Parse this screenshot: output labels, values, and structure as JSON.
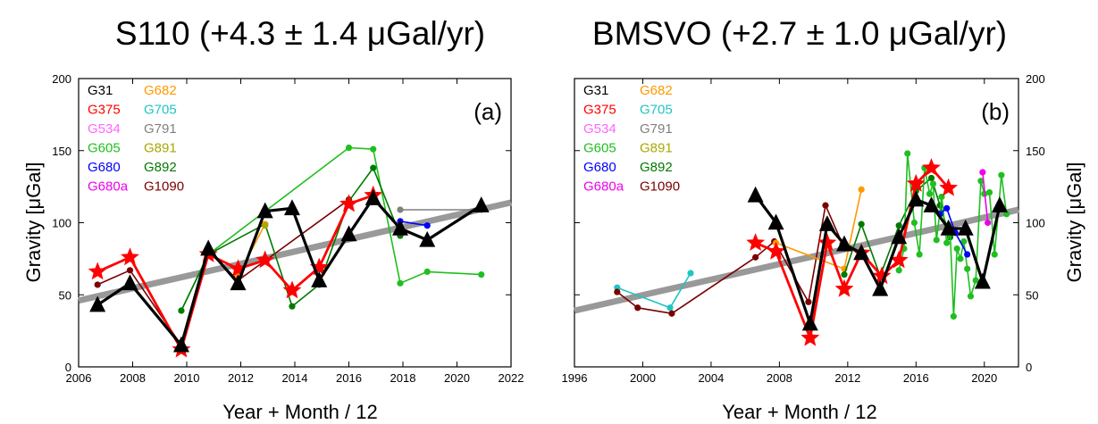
{
  "colors": {
    "G31": "#000000",
    "G375": "#ff0000",
    "G534": "#ff66ff",
    "G605": "#1fbf1f",
    "G680": "#0000ff",
    "G680a": "#ee00ee",
    "G682": "#ff9900",
    "G705": "#20c4c4",
    "G791": "#808080",
    "G891": "#a8a800",
    "G892": "#007a00",
    "G1090": "#7a0000",
    "trend": "#999999"
  },
  "chart_data": [
    {
      "type": "line",
      "panel_label": "(a)",
      "title": "S110 (+4.3 ± 1.4 μGal/yr)",
      "xlabel": "Year + Month / 12",
      "ylabel": "Gravity [μGal]",
      "xlim": [
        2006,
        2022
      ],
      "ylim": [
        0,
        200
      ],
      "xticks": [
        2006,
        2008,
        2010,
        2012,
        2014,
        2016,
        2018,
        2020,
        2022
      ],
      "yticks": [
        0,
        50,
        100,
        150,
        200
      ],
      "y_axis_side": "left",
      "legend": {
        "columns": [
          [
            "G31",
            "G375",
            "G534",
            "G605",
            "G680",
            "G680a"
          ],
          [
            "G682",
            "G705",
            "G791",
            "G891",
            "G892",
            "G1090"
          ]
        ]
      },
      "trend": {
        "x": [
          2006,
          2022
        ],
        "y": [
          46,
          114
        ]
      },
      "series": [
        {
          "name": "G1090",
          "marker": "dot",
          "x": [
            2006.7,
            2007.9,
            2009.8,
            2010.8,
            2011.9,
            2016.0
          ],
          "y": [
            57,
            67,
            15,
            80,
            60,
            116
          ]
        },
        {
          "name": "G605",
          "marker": "dot",
          "x": [
            2009.8,
            2010.8,
            2016.0,
            2016.9,
            2017.9,
            2018.9,
            2020.9
          ],
          "y": [
            39,
            78,
            152,
            151,
            58,
            66,
            64
          ]
        },
        {
          "name": "G892",
          "marker": "dot",
          "x": [
            2009.8,
            2010.8,
            2012.9,
            2013.9,
            2014.9,
            2016.0,
            2016.9,
            2017.9
          ],
          "y": [
            39,
            78,
            99,
            42,
            57,
            115,
            138,
            91
          ]
        },
        {
          "name": "G682",
          "marker": "dot",
          "x": [
            2011.9,
            2012.9
          ],
          "y": [
            63,
            99
          ]
        },
        {
          "name": "G891",
          "marker": "dot",
          "x": [
            2012.9
          ],
          "y": [
            98
          ]
        },
        {
          "name": "G791",
          "marker": "dot",
          "x": [
            2017.9,
            2020.9
          ],
          "y": [
            109,
            109
          ]
        },
        {
          "name": "G680",
          "marker": "dot",
          "x": [
            2017.9,
            2018.9
          ],
          "y": [
            101,
            98
          ]
        },
        {
          "name": "G375",
          "marker": "star",
          "x": [
            2006.7,
            2007.9,
            2009.8,
            2010.8,
            2011.9,
            2012.9,
            2013.9,
            2014.9,
            2016.0,
            2016.9
          ],
          "y": [
            66,
            76,
            12,
            78,
            68,
            74,
            53,
            69,
            113,
            119
          ]
        },
        {
          "name": "G31",
          "marker": "triangle",
          "x": [
            2006.7,
            2007.9,
            2009.8,
            2010.8,
            2011.9,
            2012.9,
            2013.9,
            2014.9,
            2016.0,
            2016.9,
            2017.9,
            2018.9,
            2020.9
          ],
          "y": [
            43,
            58,
            15,
            82,
            58,
            108,
            110,
            60,
            92,
            117,
            96,
            88,
            112
          ]
        }
      ]
    },
    {
      "type": "line",
      "panel_label": "(b)",
      "title": "BMSVO (+2.7 ± 1.0 μGal/yr)",
      "xlabel": "Year + Month / 12",
      "ylabel": "Gravity [μGal]",
      "xlim": [
        1996,
        2022
      ],
      "ylim": [
        0,
        200
      ],
      "xticks": [
        1996,
        2000,
        2004,
        2008,
        2012,
        2016,
        2020
      ],
      "yticks": [
        0,
        50,
        100,
        150,
        200
      ],
      "y_axis_side": "right",
      "legend": {
        "columns": [
          [
            "G31",
            "G375",
            "G534",
            "G605",
            "G680",
            "G680a"
          ],
          [
            "G682",
            "G705",
            "G791",
            "G891",
            "G892",
            "G1090"
          ]
        ]
      },
      "trend": {
        "x": [
          1996,
          2022
        ],
        "y": [
          39,
          109
        ]
      },
      "series": [
        {
          "name": "G705",
          "marker": "dot",
          "x": [
            1998.5,
            2001.6,
            2002.8
          ],
          "y": [
            55,
            41,
            65
          ]
        },
        {
          "name": "G1090",
          "marker": "dot",
          "x": [
            1998.5,
            1999.7,
            2001.7,
            2006.6,
            2007.7,
            2009.7,
            2010.7,
            2011.7
          ],
          "y": [
            52,
            41,
            37,
            76,
            87,
            45,
            112,
            85
          ]
        },
        {
          "name": "G682",
          "marker": "dot",
          "x": [
            2007.8,
            2011.8,
            2012.8
          ],
          "y": [
            86,
            68,
            123
          ]
        },
        {
          "name": "G892",
          "marker": "dot",
          "x": [
            2011.8,
            2012.8,
            2013.9,
            2015.0,
            2016.0,
            2016.9,
            2017.4,
            2018.0
          ],
          "y": [
            64,
            99,
            63,
            98,
            122,
            131,
            112,
            90
          ]
        },
        {
          "name": "G605",
          "marker": "dot",
          "x": [
            2015.0,
            2015.3,
            2015.5,
            2015.9,
            2016.2,
            2016.5,
            2016.8,
            2017.0,
            2017.2,
            2017.5,
            2017.8,
            2018.0,
            2018.2,
            2018.4,
            2018.6,
            2018.8,
            2019.0,
            2019.2,
            2019.5,
            2019.8,
            2020.0,
            2020.3,
            2020.6,
            2021.0,
            2021.3
          ],
          "y": [
            67,
            82,
            148,
            100,
            78,
            138,
            120,
            127,
            88,
            118,
            86,
            94,
            35,
            82,
            75,
            87,
            68,
            49,
            60,
            129,
            120,
            121,
            78,
            133,
            106
          ]
        },
        {
          "name": "G680",
          "marker": "dot",
          "x": [
            2017.4,
            2017.8,
            2018.3,
            2019.0
          ],
          "y": [
            106,
            110,
            93,
            78
          ]
        },
        {
          "name": "G680a",
          "marker": "dot",
          "x": [
            2019.9,
            2020.2
          ],
          "y": [
            135,
            100
          ]
        },
        {
          "name": "G375",
          "marker": "star",
          "x": [
            2006.6,
            2007.8,
            2009.8,
            2010.8,
            2011.8,
            2012.8,
            2014.0,
            2015.0,
            2016.0,
            2016.9,
            2017.9
          ],
          "y": [
            86,
            80,
            20,
            86,
            54,
            79,
            63,
            74,
            127,
            138,
            124
          ]
        },
        {
          "name": "G31",
          "marker": "triangle",
          "x": [
            2006.6,
            2007.8,
            2009.8,
            2010.8,
            2011.8,
            2012.8,
            2013.9,
            2015.0,
            2016.0,
            2016.9,
            2017.9,
            2018.9,
            2019.9,
            2020.9
          ],
          "y": [
            119,
            100,
            30,
            99,
            85,
            79,
            54,
            90,
            116,
            112,
            96,
            96,
            59,
            112
          ]
        }
      ]
    }
  ]
}
